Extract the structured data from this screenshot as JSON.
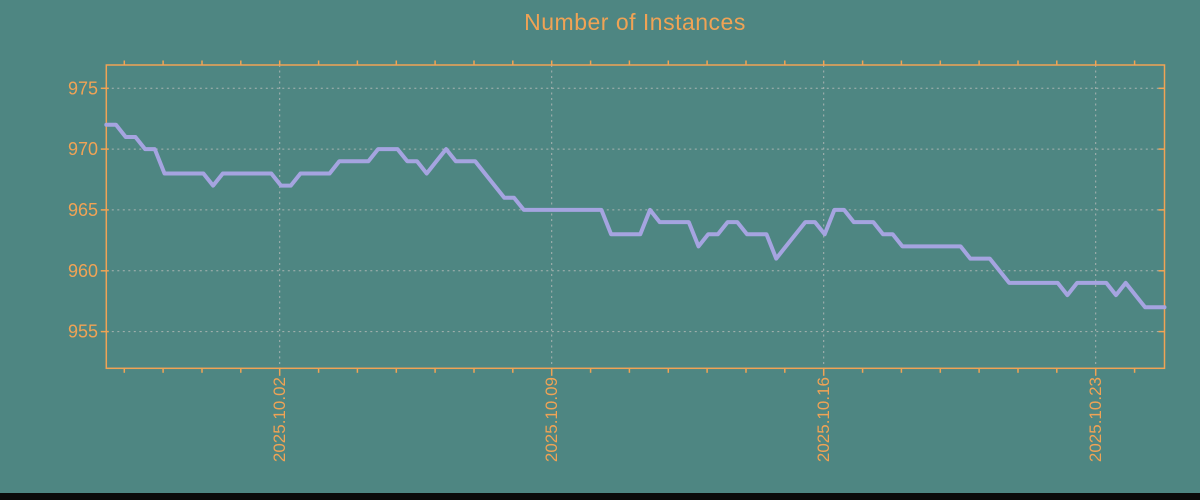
{
  "colors": {
    "background": "#4E8682",
    "accent": "#F0A355",
    "line": "#A5A4E0",
    "grid": "#A9B4B1",
    "footer": "#0B0B0B"
  },
  "chart_data": {
    "type": "line",
    "title": "Number of Instances",
    "series_name": "instances",
    "grid": "dashed",
    "legend": "none",
    "ylim": [
      952,
      977
    ],
    "y_ticks": [
      975,
      970,
      965,
      960,
      955
    ],
    "x_ticks": [
      {
        "label": "2025.10.02",
        "day": 0
      },
      {
        "label": "2025.10.09",
        "day": 7
      },
      {
        "label": "2025.10.16",
        "day": 14
      },
      {
        "label": "2025.10.23",
        "day": 21
      }
    ],
    "x_minor_day_range": [
      -4,
      22
    ],
    "x_start_day_offset": -4.48,
    "samples_per_day": 4,
    "values": [
      972,
      972,
      971,
      971,
      970,
      970,
      968,
      968,
      968,
      968,
      968,
      967,
      968,
      968,
      968,
      968,
      968,
      968,
      967,
      967,
      968,
      968,
      968,
      968,
      969,
      969,
      969,
      969,
      970,
      970,
      970,
      969,
      969,
      968,
      969,
      970,
      969,
      969,
      969,
      968,
      967,
      966,
      966,
      965,
      965,
      965,
      965,
      965,
      965,
      965,
      965,
      965,
      963,
      963,
      963,
      963,
      965,
      964,
      964,
      964,
      964,
      962,
      963,
      963,
      964,
      964,
      963,
      963,
      963,
      961,
      962,
      963,
      964,
      964,
      963,
      965,
      965,
      964,
      964,
      964,
      963,
      963,
      962,
      962,
      962,
      962,
      962,
      962,
      962,
      961,
      961,
      961,
      960,
      959,
      959,
      959,
      959,
      959,
      959,
      958,
      959,
      959,
      959,
      959,
      958,
      959,
      958,
      957,
      957,
      957
    ]
  }
}
